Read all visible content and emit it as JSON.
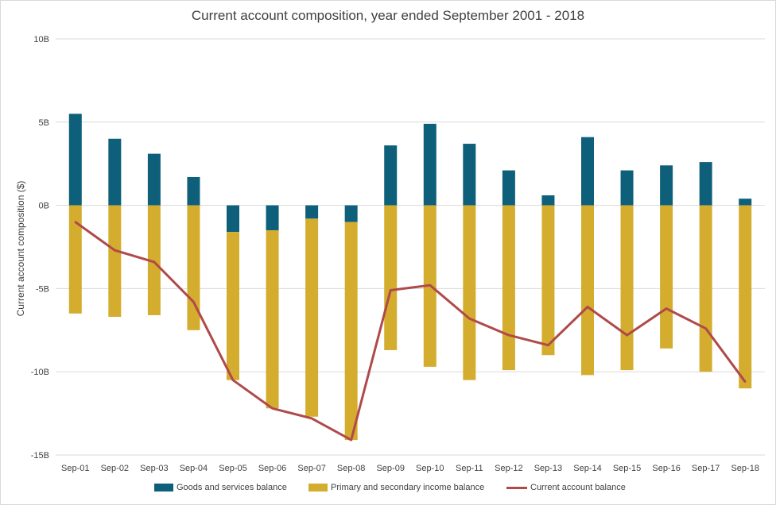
{
  "chart_data": {
    "type": "bar",
    "title": "Current account composition, year ended September 2001 - 2018",
    "ylabel": "Current account composition ($)",
    "xlabel": "",
    "ylim": [
      -15,
      10
    ],
    "yticks": [
      10,
      5,
      0,
      -5,
      -10,
      -15
    ],
    "ytick_labels": [
      "10B",
      "5B",
      "0B",
      "-5B",
      "-10B",
      "-15B"
    ],
    "grid": true,
    "legend_position": "bottom",
    "categories": [
      "Sep-01",
      "Sep-02",
      "Sep-03",
      "Sep-04",
      "Sep-05",
      "Sep-06",
      "Sep-07",
      "Sep-08",
      "Sep-09",
      "Sep-10",
      "Sep-11",
      "Sep-12",
      "Sep-13",
      "Sep-14",
      "Sep-15",
      "Sep-16",
      "Sep-17",
      "Sep-18"
    ],
    "series": [
      {
        "name": "Goods and services balance",
        "kind": "bar",
        "color": "#0e5f7a",
        "values": [
          5.5,
          4.0,
          3.1,
          1.7,
          -1.6,
          -1.5,
          -0.8,
          -1.0,
          3.6,
          4.9,
          3.7,
          2.1,
          0.6,
          4.1,
          2.1,
          2.4,
          2.6,
          0.4
        ]
      },
      {
        "name": "Primary and secondary income balance",
        "kind": "bar",
        "color": "#d4ad2f",
        "values": [
          -6.5,
          -6.7,
          -6.6,
          -7.5,
          -8.9,
          -10.7,
          -11.9,
          -13.1,
          -8.7,
          -9.7,
          -10.5,
          -9.9,
          -9.0,
          -10.2,
          -9.9,
          -8.6,
          -10.0,
          -11.0
        ]
      },
      {
        "name": "Current account balance",
        "kind": "line",
        "color": "#b04a4a",
        "values": [
          -1.0,
          -2.7,
          -3.4,
          -5.8,
          -10.5,
          -12.2,
          -12.8,
          -14.1,
          -5.1,
          -4.8,
          -6.8,
          -7.8,
          -8.4,
          -6.1,
          -7.8,
          -6.2,
          -7.4,
          -10.6
        ]
      }
    ]
  }
}
